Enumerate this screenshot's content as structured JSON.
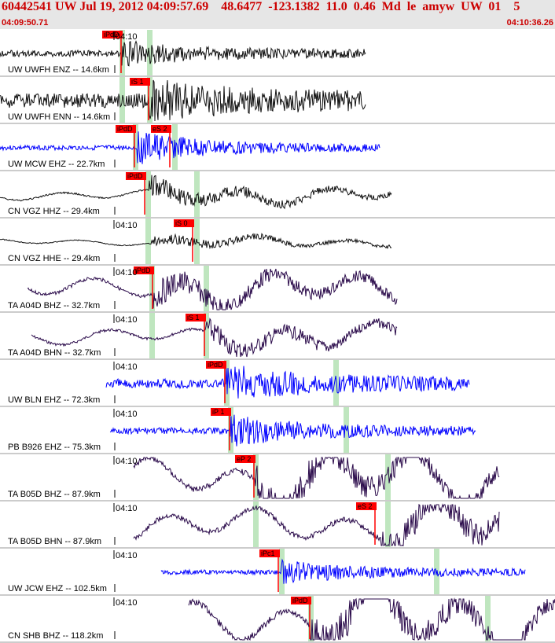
{
  "header": {
    "title": "60442541 UW Jul 19, 2012 04:09:57.69    48.6477  -123.1382  11.0  0.46  Md  le  amyw  UW  01    5",
    "time_start": "04:09:50.71",
    "time_end": "04:10:36.26"
  },
  "colors": {
    "header_bg": "#e6e6e6",
    "header_text": "#cc0000",
    "pick_red": "#ff0000",
    "green_band": "#bfe6bf",
    "trace_black": "#111111",
    "trace_blue": "#0000ff",
    "trace_purple": "#2a0a4a",
    "grid": "#999999"
  },
  "tick_label": "04:10",
  "traces": [
    {
      "label": "UW UWFH ENZ -- 14.6km",
      "show_tick": true,
      "color": "black",
      "style": "noise",
      "amp": 4,
      "xs": 0,
      "xe": 465,
      "arrival": 155,
      "arrival_amp": 3,
      "bands": [
        155,
        190
      ],
      "picks": [
        {
          "x": 130,
          "label": "iPdD"
        }
      ],
      "seed": 1
    },
    {
      "label": "UW UWFH ENN -- 14.6km",
      "show_tick": false,
      "color": "black",
      "style": "noise",
      "amp": 9,
      "xs": 0,
      "xe": 465,
      "arrival": 190,
      "arrival_amp": 2,
      "bands": [
        155,
        190
      ],
      "picks": [
        {
          "x": 165,
          "label": "iS 1"
        }
      ],
      "seed": 2
    },
    {
      "label": "UW MCW EHZ -- 22.7km",
      "show_tick": false,
      "color": "blue",
      "style": "noise",
      "amp": 3,
      "xs": 0,
      "xe": 483,
      "arrival": 175,
      "arrival_amp": 6,
      "bands": [
        172,
        222
      ],
      "picks": [
        {
          "x": 147,
          "label": "iPdD"
        },
        {
          "x": 192,
          "label": "eS 2"
        }
      ],
      "seed": 3
    },
    {
      "label": "CN VGZ HHZ -- 29.4km",
      "show_tick": false,
      "color": "black",
      "style": "wave",
      "amp": 5,
      "xs": 0,
      "xe": 498,
      "arrival": 190,
      "arrival_amp": 4,
      "bands": [
        188,
        250
      ],
      "picks": [
        {
          "x": 160,
          "label": "iPdD"
        }
      ],
      "seed": 4
    },
    {
      "label": "CN VGZ HHE -- 29.4km",
      "show_tick": true,
      "color": "black",
      "style": "wave",
      "amp": 3,
      "xs": 0,
      "xe": 498,
      "arrival": 190,
      "arrival_amp": 4,
      "bands": [
        188,
        250
      ],
      "picks": [
        {
          "x": 221,
          "label": "iS 0"
        }
      ],
      "seed": 5
    },
    {
      "label": "TA A04D BHZ -- 32.7km",
      "show_tick": true,
      "color": "purple",
      "style": "wave",
      "amp": 10,
      "xs": 35,
      "xe": 505,
      "arrival": 195,
      "arrival_amp": 2,
      "bands": [
        193,
        262
      ],
      "picks": [
        {
          "x": 170,
          "label": "iPdD"
        }
      ],
      "seed": 6
    },
    {
      "label": "TA A04D BHN -- 32.7km",
      "show_tick": true,
      "color": "purple",
      "style": "wave",
      "amp": 8,
      "xs": 40,
      "xe": 505,
      "arrival": 262,
      "arrival_amp": 2,
      "bands": [
        193,
        262
      ],
      "picks": [
        {
          "x": 236,
          "label": "iS 1"
        }
      ],
      "seed": 7
    },
    {
      "label": "UW BLN EHZ -- 72.3km",
      "show_tick": true,
      "color": "blue",
      "style": "noise",
      "amp": 6,
      "xs": 135,
      "xe": 597,
      "arrival": 288,
      "arrival_amp": 3,
      "bands": [
        288,
        427
      ],
      "picks": [
        {
          "x": 262,
          "label": "iPdD"
        }
      ],
      "seed": 8
    },
    {
      "label": "PB B926 EHZ -- 75.3km",
      "show_tick": true,
      "color": "blue",
      "style": "noise",
      "amp": 4,
      "xs": 140,
      "xe": 605,
      "arrival": 293,
      "arrival_amp": 4,
      "bands": [
        293,
        440
      ],
      "picks": [
        {
          "x": 268,
          "label": "iP 1"
        }
      ],
      "seed": 9
    },
    {
      "label": "TA B05D BHZ -- 87.9km",
      "show_tick": true,
      "color": "purple",
      "style": "wave",
      "amp": 18,
      "xs": 170,
      "xe": 635,
      "arrival": 325,
      "arrival_amp": 1.3,
      "bands": [
        325,
        493
      ],
      "picks": [
        {
          "x": 299,
          "label": "eP 2"
        }
      ],
      "seed": 10
    },
    {
      "label": "TA B05D BHN -- 87.9km",
      "show_tick": true,
      "color": "purple",
      "style": "wave",
      "amp": 16,
      "xs": 170,
      "xe": 635,
      "arrival": 485,
      "arrival_amp": 1.5,
      "bands": [
        325,
        493
      ],
      "picks": [
        {
          "x": 453,
          "label": "eS 2"
        }
      ],
      "seed": 11
    },
    {
      "label": "UW JCW EHZ -- 102.5km",
      "show_tick": true,
      "color": "blue",
      "style": "noise",
      "amp": 3,
      "xs": 205,
      "xe": 668,
      "arrival": 358,
      "arrival_amp": 4,
      "bands": [
        358,
        555
      ],
      "picks": [
        {
          "x": 330,
          "label": "iPc1"
        }
      ],
      "seed": 12
    },
    {
      "label": "CN SHB BHZ -- 118.2km",
      "show_tick": true,
      "color": "purple",
      "style": "wave",
      "amp": 20,
      "xs": 240,
      "xe": 706,
      "arrival": 395,
      "arrival_amp": 1.2,
      "bands": [
        395,
        620
      ],
      "picks": [
        {
          "x": 370,
          "label": "iPdD"
        }
      ],
      "seed": 13
    }
  ]
}
